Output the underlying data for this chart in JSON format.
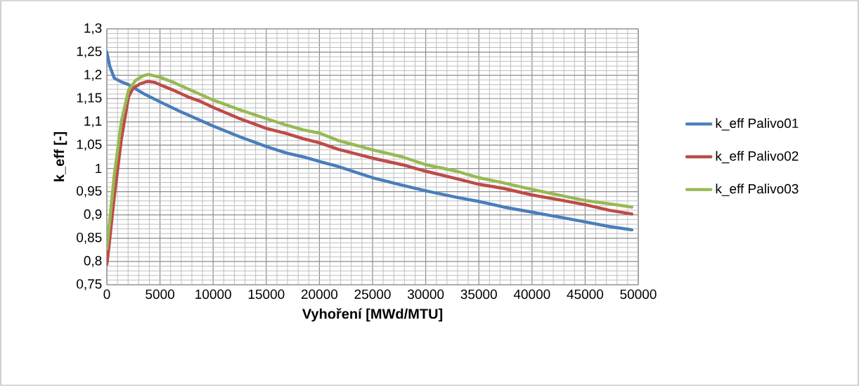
{
  "chart_data": {
    "type": "line",
    "xlabel": "Vyhoření [MWd/MTU]",
    "ylabel": "k_eff [-]",
    "xlim": [
      0,
      50000
    ],
    "ylim": [
      0.75,
      1.3
    ],
    "xticks": [
      0,
      5000,
      10000,
      15000,
      20000,
      25000,
      30000,
      35000,
      40000,
      45000,
      50000
    ],
    "yticks": [
      {
        "value": 0.75,
        "label": "0,75"
      },
      {
        "value": 0.8,
        "label": "0,8"
      },
      {
        "value": 0.85,
        "label": "0,85"
      },
      {
        "value": 0.9,
        "label": "0,9"
      },
      {
        "value": 0.95,
        "label": "0,95"
      },
      {
        "value": 1.0,
        "label": "1"
      },
      {
        "value": 1.05,
        "label": "1,05"
      },
      {
        "value": 1.1,
        "label": "1,1"
      },
      {
        "value": 1.15,
        "label": "1,15"
      },
      {
        "value": 1.2,
        "label": "1,2"
      },
      {
        "value": 1.25,
        "label": "1,25"
      },
      {
        "value": 1.3,
        "label": "1,3"
      }
    ],
    "grid": true,
    "legend": "right",
    "series": [
      {
        "name": "k_eff Palivo01",
        "color": "#4a7ebb",
        "x": [
          0,
          270,
          700,
          1380,
          2040,
          2700,
          3600,
          5000,
          6930,
          10000,
          12500,
          15000,
          16900,
          18440,
          20000,
          21780,
          25000,
          27780,
          30000,
          32900,
          35000,
          37330,
          40000,
          42900,
          45000,
          47300,
          49400
        ],
        "values": [
          1.25,
          1.22,
          1.194,
          1.186,
          1.18,
          1.171,
          1.159,
          1.143,
          1.122,
          1.091,
          1.068,
          1.047,
          1.033,
          1.025,
          1.015,
          1.004,
          0.98,
          0.964,
          0.952,
          0.938,
          0.929,
          0.917,
          0.906,
          0.894,
          0.885,
          0.875,
          0.868
        ]
      },
      {
        "name": "k_eff Palivo02",
        "color": "#be4b48",
        "x": [
          0,
          150,
          700,
          1380,
          2040,
          2490,
          3150,
          3820,
          4490,
          5000,
          6270,
          7600,
          8700,
          10000,
          12500,
          15000,
          16900,
          18440,
          20000,
          21780,
          25000,
          27780,
          30000,
          32900,
          35000,
          37330,
          40000,
          42900,
          45000,
          47300,
          49400
        ],
        "values": [
          0.794,
          0.822,
          0.939,
          1.065,
          1.154,
          1.173,
          1.182,
          1.187,
          1.185,
          1.18,
          1.168,
          1.154,
          1.145,
          1.131,
          1.107,
          1.086,
          1.075,
          1.064,
          1.055,
          1.041,
          1.022,
          1.008,
          0.994,
          0.978,
          0.966,
          0.957,
          0.943,
          0.931,
          0.922,
          0.91,
          0.902
        ]
      },
      {
        "name": "k_eff Palivo03",
        "color": "#98b954",
        "x": [
          0,
          700,
          1380,
          2040,
          2700,
          3380,
          3930,
          5000,
          6270,
          7600,
          10000,
          12500,
          15000,
          16900,
          18440,
          20000,
          21780,
          25000,
          27780,
          30000,
          32900,
          35000,
          37330,
          40000,
          42900,
          45000,
          47300,
          49400
        ],
        "values": [
          0.827,
          0.986,
          1.103,
          1.168,
          1.189,
          1.199,
          1.202,
          1.196,
          1.185,
          1.171,
          1.147,
          1.126,
          1.107,
          1.093,
          1.083,
          1.076,
          1.06,
          1.04,
          1.025,
          1.008,
          0.994,
          0.98,
          0.969,
          0.955,
          0.941,
          0.931,
          0.924,
          0.917
        ]
      }
    ]
  }
}
